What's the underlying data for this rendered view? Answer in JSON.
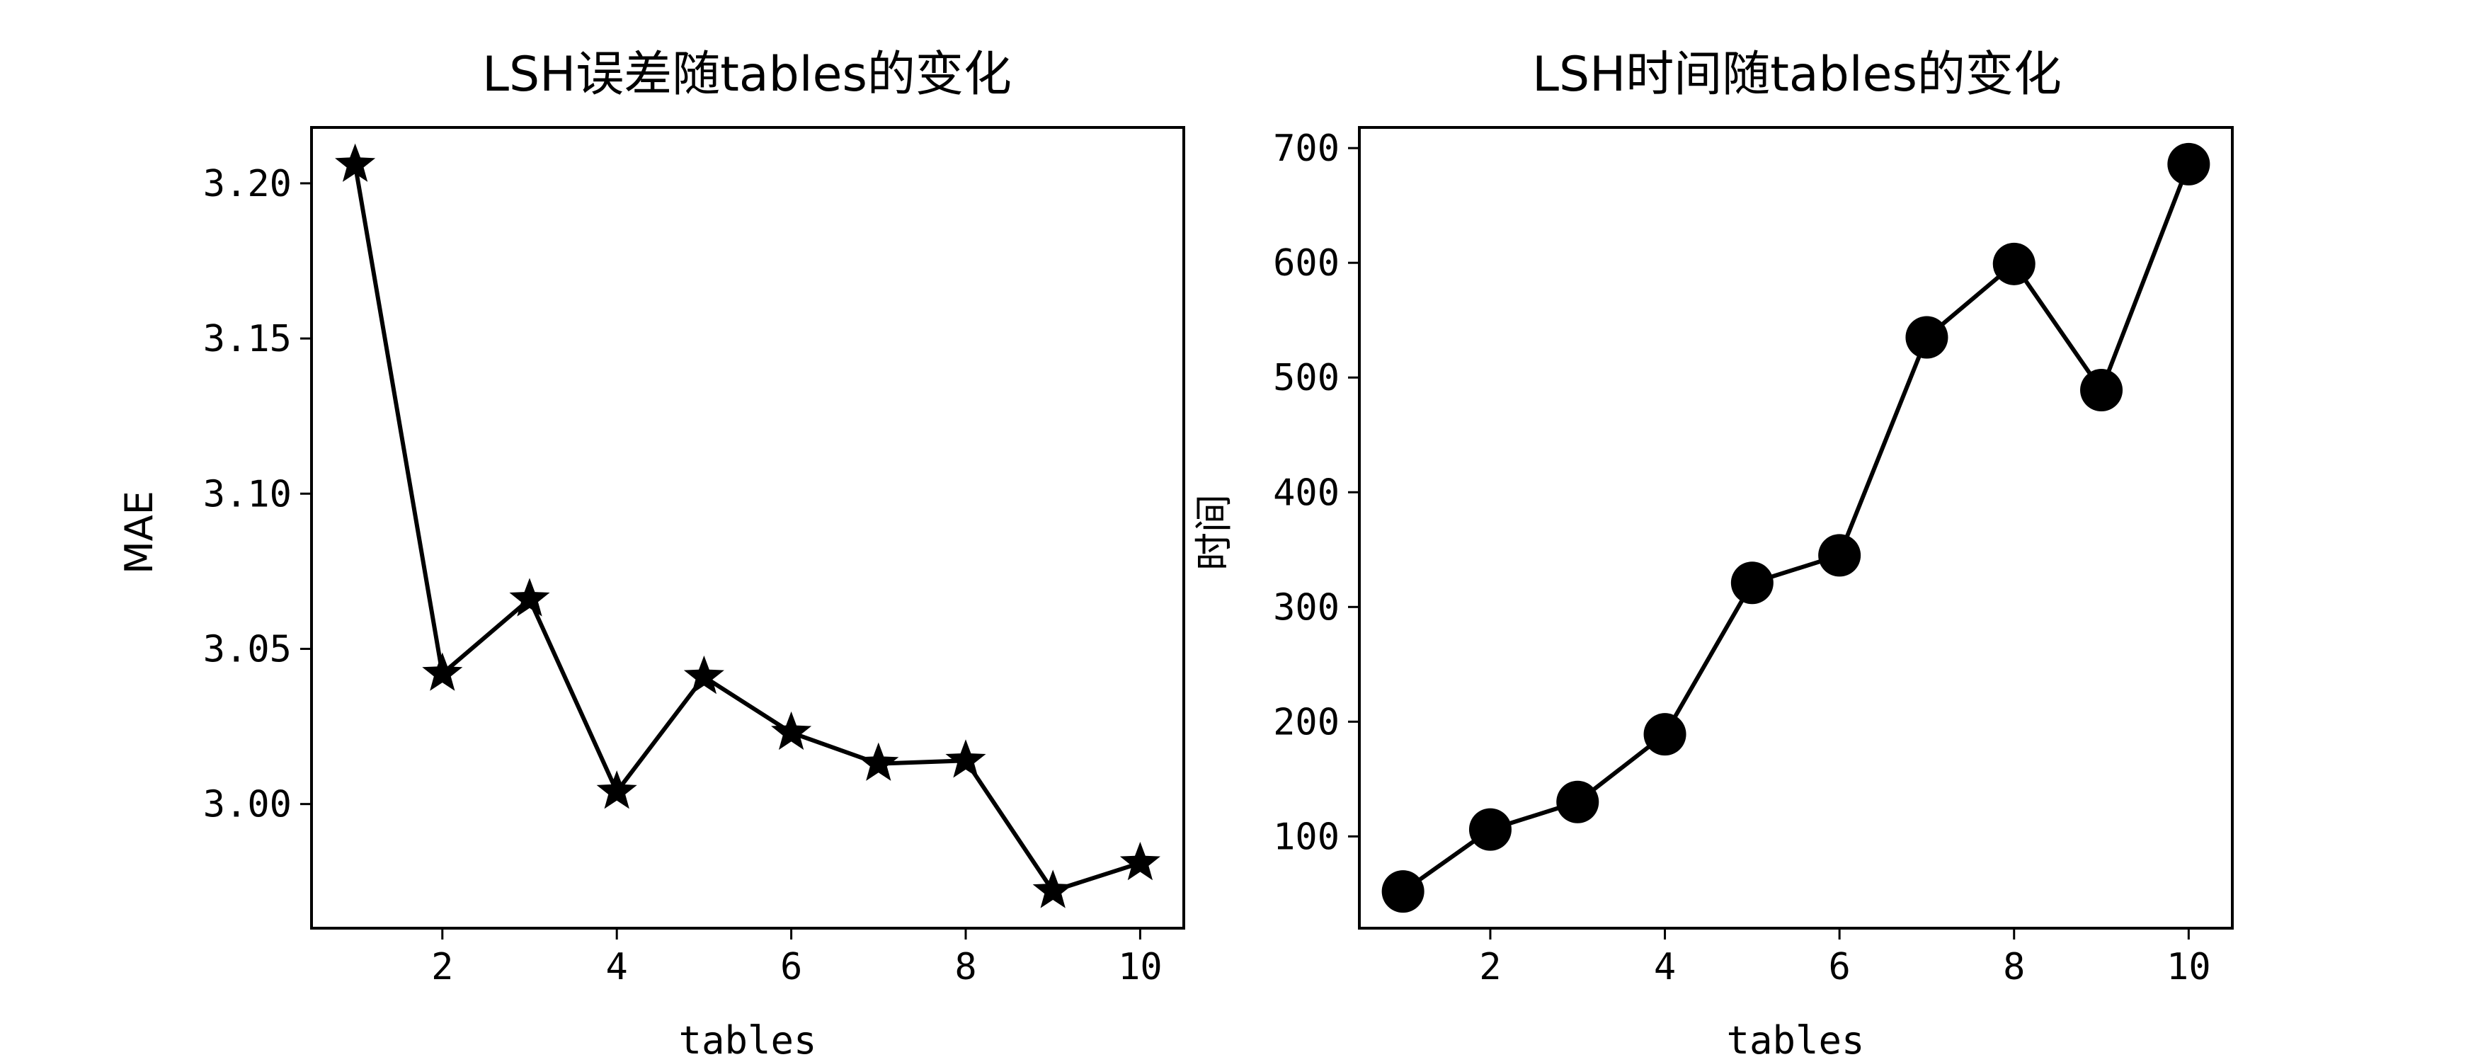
{
  "chart_data": [
    {
      "type": "line",
      "title": "LSH误差随tables的变化",
      "xlabel": "tables",
      "ylabel": "MAE",
      "x": [
        1,
        2,
        3,
        4,
        5,
        6,
        7,
        8,
        9,
        10
      ],
      "series": [
        {
          "values": [
            3.206,
            3.042,
            3.066,
            3.004,
            3.041,
            3.023,
            3.013,
            3.014,
            2.972,
            2.981
          ],
          "marker": "star",
          "color": "#000000"
        }
      ],
      "xlim": [
        0.5,
        10.5
      ],
      "ylim": [
        2.96,
        3.218
      ],
      "xticks": [
        2,
        4,
        6,
        8,
        10
      ],
      "xtick_labels": [
        "2",
        "4",
        "6",
        "8",
        "10"
      ],
      "yticks": [
        3.0,
        3.05,
        3.1,
        3.15,
        3.2
      ],
      "ytick_labels": [
        "3.00",
        "3.05",
        "3.10",
        "3.15",
        "3.20"
      ],
      "grid": false
    },
    {
      "type": "line",
      "title": "LSH时间随tables的变化",
      "xlabel": "tables",
      "ylabel": "时间",
      "x": [
        1,
        2,
        3,
        4,
        5,
        6,
        7,
        8,
        9,
        10
      ],
      "series": [
        {
          "values": [
            52,
            106,
            130,
            189,
            321,
            345,
            535,
            599,
            489,
            686
          ],
          "marker": "circle",
          "color": "#000000"
        }
      ],
      "xlim": [
        0.5,
        10.5
      ],
      "ylim": [
        20,
        718
      ],
      "xticks": [
        2,
        4,
        6,
        8,
        10
      ],
      "xtick_labels": [
        "2",
        "4",
        "6",
        "8",
        "10"
      ],
      "yticks": [
        100,
        200,
        300,
        400,
        500,
        600,
        700
      ],
      "ytick_labels": [
        "100",
        "200",
        "300",
        "400",
        "500",
        "600",
        "700"
      ],
      "grid": false
    }
  ]
}
